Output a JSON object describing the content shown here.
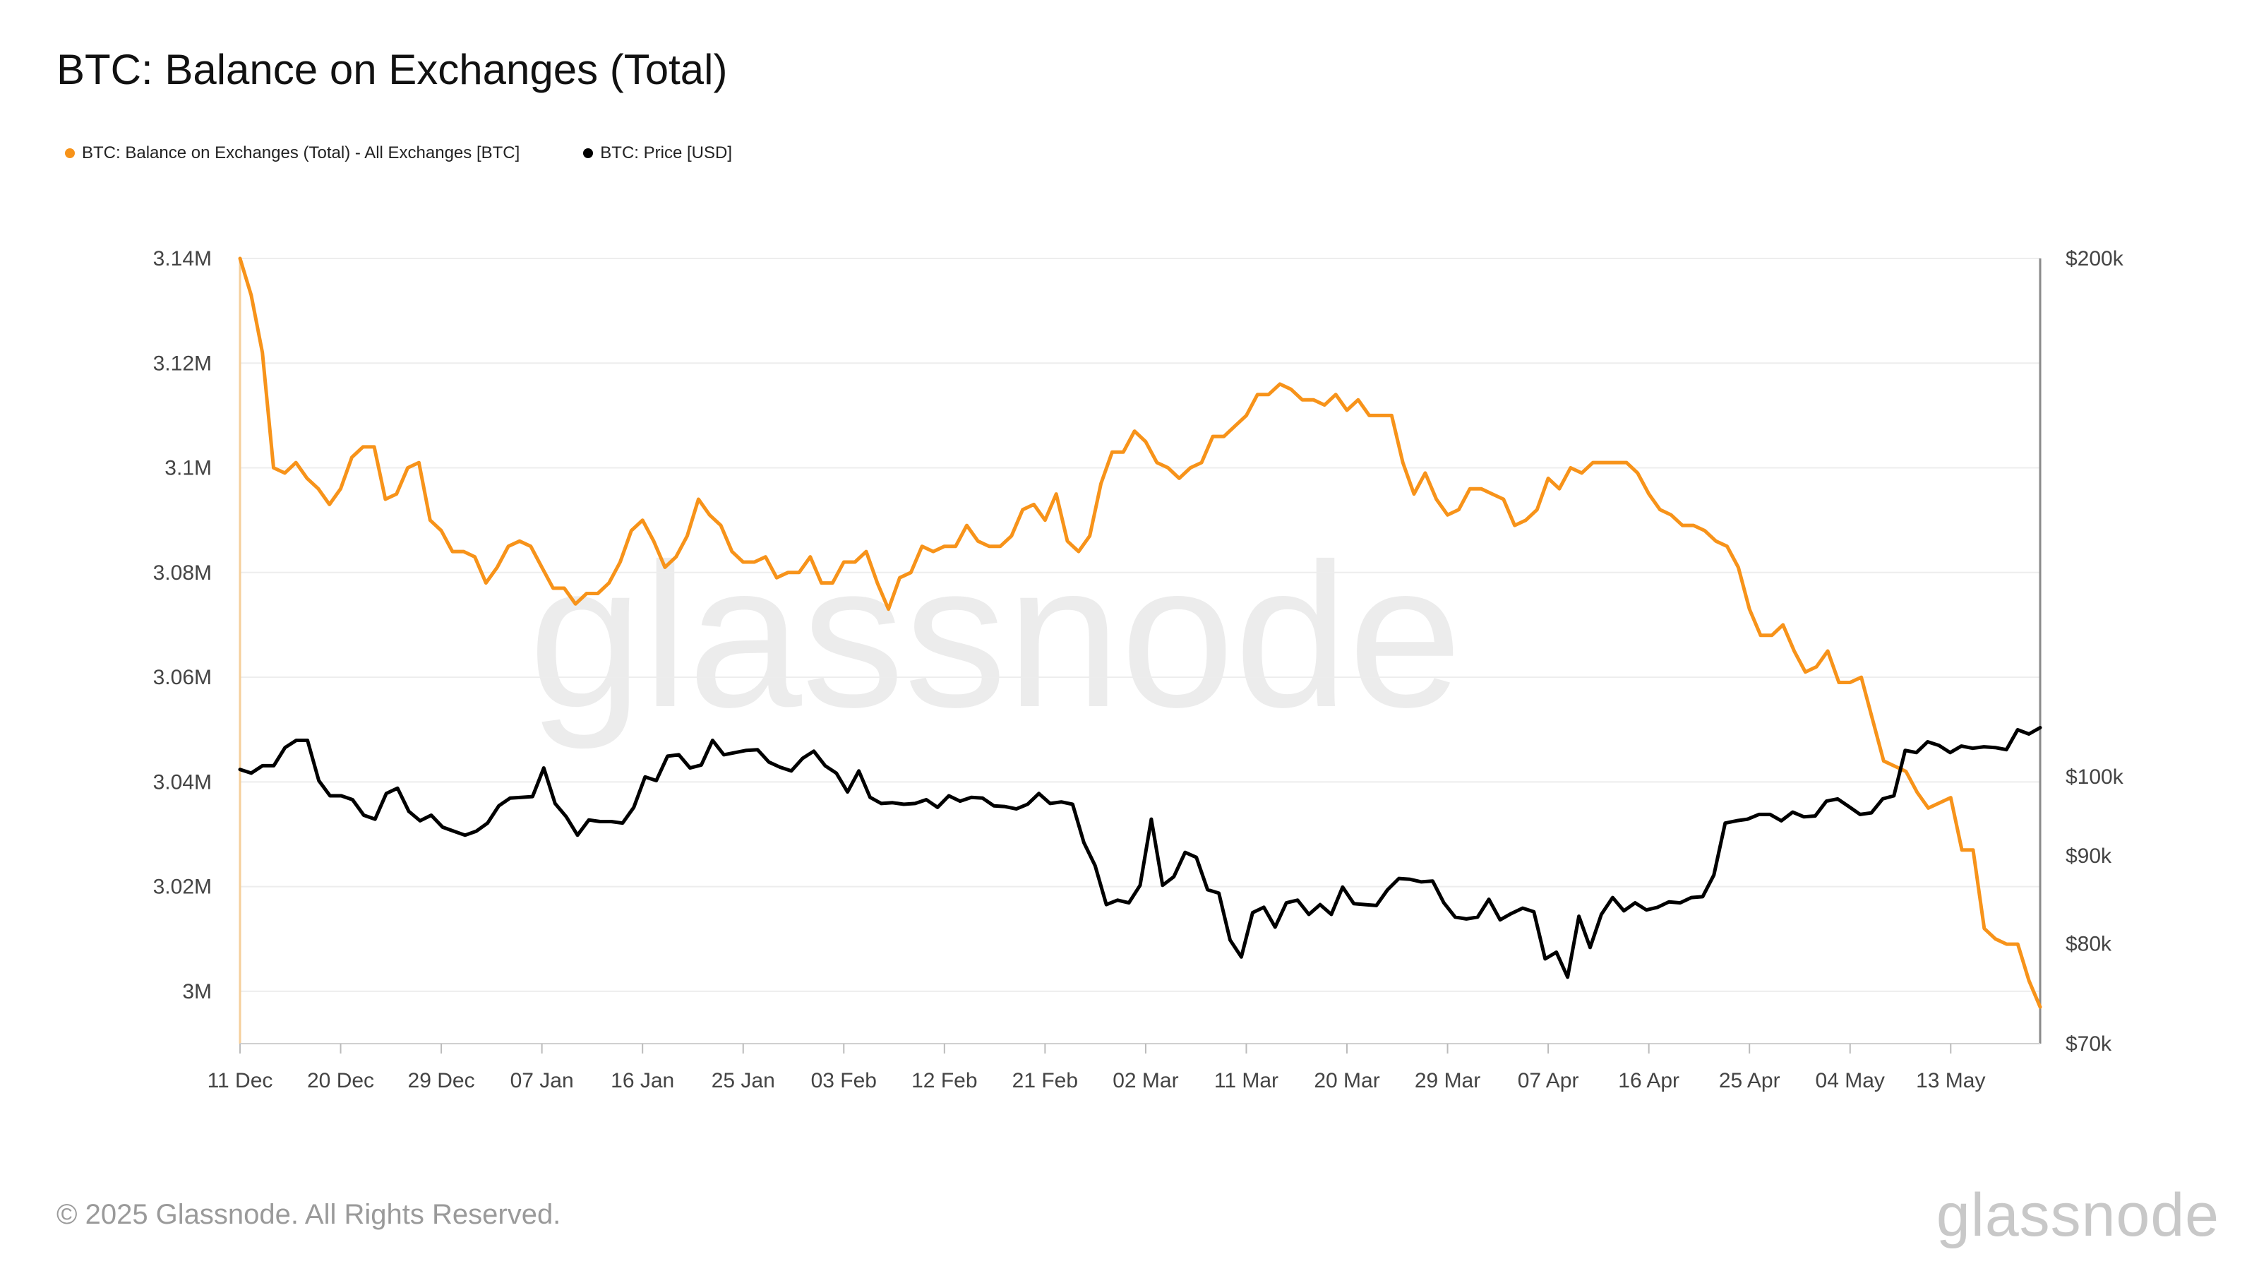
{
  "title": "BTC: Balance on Exchanges (Total)",
  "footer": {
    "copyright": "© 2025 Glassnode. All Rights Reserved.",
    "logo": "glassnode",
    "watermark": "glassnode"
  },
  "chart_data": {
    "type": "line",
    "title": "BTC: Balance on Exchanges (Total)",
    "x_ticks": [
      "11 Dec",
      "20 Dec",
      "29 Dec",
      "07 Jan",
      "16 Jan",
      "25 Jan",
      "03 Feb",
      "12 Feb",
      "21 Feb",
      "02 Mar",
      "11 Mar",
      "20 Mar",
      "29 Mar",
      "07 Apr",
      "16 Apr",
      "25 Apr",
      "04 May",
      "13 May"
    ],
    "y_left": {
      "ticks": [
        3000000,
        3020000,
        3040000,
        3060000,
        3080000,
        3100000,
        3120000,
        3140000
      ],
      "tick_labels": [
        "3M",
        "3.02M",
        "3.04M",
        "3.06M",
        "3.08M",
        "3.1M",
        "3.12M",
        "3.14M"
      ],
      "range": [
        2990000,
        3140000
      ]
    },
    "y_right": {
      "scale": "log",
      "ticks": [
        70000,
        80000,
        90000,
        100000,
        200000
      ],
      "tick_labels": [
        "$70k",
        "$80k",
        "$90k",
        "$100k",
        "$200k"
      ],
      "range": [
        70000,
        200000
      ]
    },
    "grid": true,
    "legend_position": "top-left",
    "series": [
      {
        "name": "BTC: Balance on Exchanges (Total) - All Exchanges [BTC]",
        "axis": "left",
        "color": "#f7931a",
        "values": [
          3140000,
          3133000,
          3122000,
          3100000,
          3099000,
          3101000,
          3098000,
          3096000,
          3093000,
          3096000,
          3102000,
          3104000,
          3104000,
          3094000,
          3095000,
          3100000,
          3101000,
          3090000,
          3088000,
          3084000,
          3084000,
          3083000,
          3078000,
          3081000,
          3085000,
          3086000,
          3085000,
          3081000,
          3077000,
          3077000,
          3074000,
          3076000,
          3076000,
          3078000,
          3082000,
          3088000,
          3090000,
          3086000,
          3081000,
          3083000,
          3087000,
          3094000,
          3091000,
          3089000,
          3084000,
          3082000,
          3082000,
          3083000,
          3079000,
          3080000,
          3080000,
          3083000,
          3078000,
          3078000,
          3082000,
          3082000,
          3084000,
          3078000,
          3073000,
          3079000,
          3080000,
          3085000,
          3084000,
          3085000,
          3085000,
          3089000,
          3086000,
          3085000,
          3085000,
          3087000,
          3092000,
          3093000,
          3090000,
          3095000,
          3086000,
          3084000,
          3087000,
          3097000,
          3103000,
          3103000,
          3107000,
          3105000,
          3101000,
          3100000,
          3098000,
          3100000,
          3101000,
          3106000,
          3106000,
          3108000,
          3110000,
          3114000,
          3114000,
          3116000,
          3115000,
          3113000,
          3113000,
          3112000,
          3114000,
          3111000,
          3113000,
          3110000,
          3110000,
          3110000,
          3101000,
          3095000,
          3099000,
          3094000,
          3091000,
          3092000,
          3096000,
          3096000,
          3095000,
          3094000,
          3089000,
          3090000,
          3092000,
          3098000,
          3096000,
          3100000,
          3099000,
          3101000,
          3101000,
          3101000,
          3101000,
          3099000,
          3095000,
          3092000,
          3091000,
          3089000,
          3089000,
          3088000,
          3086000,
          3085000,
          3081000,
          3073000,
          3068000,
          3068000,
          3070000,
          3065000,
          3061000,
          3062000,
          3065000,
          3059000,
          3059000,
          3060000,
          3052000,
          3044000,
          3043000,
          3042000,
          3038000,
          3035000,
          3036000,
          3037000,
          3027000,
          3027000,
          3012000,
          3010000,
          3009000,
          3009000,
          3002000,
          2997000
        ]
      },
      {
        "name": "BTC: Price [USD]",
        "axis": "right",
        "color": "#000000",
        "values": [
          101000,
          100500,
          101500,
          101500,
          104000,
          105000,
          105000,
          99500,
          97500,
          97500,
          97000,
          95000,
          94500,
          97800,
          98500,
          95500,
          94300,
          95000,
          93500,
          93000,
          92500,
          93000,
          94000,
          96200,
          97200,
          97300,
          97400,
          101200,
          96500,
          94800,
          92500,
          94400,
          94200,
          94200,
          94000,
          96000,
          100000,
          99500,
          102800,
          103000,
          101200,
          101600,
          105000,
          103000,
          103300,
          103600,
          103700,
          102000,
          101300,
          100800,
          102500,
          103500,
          101500,
          100500,
          98000,
          100800,
          97300,
          96500,
          96600,
          96400,
          96500,
          97000,
          96000,
          97500,
          96800,
          97300,
          97200,
          96200,
          96100,
          95800,
          96400,
          97800,
          96500,
          96700,
          96400,
          91600,
          88800,
          84300,
          84800,
          84500,
          86500,
          94500,
          86500,
          87500,
          90400,
          89800,
          86000,
          85600,
          80400,
          78600,
          83400,
          84000,
          81800,
          84500,
          84800,
          83200,
          84300,
          83200,
          86300,
          84400,
          84300,
          84200,
          86000,
          87300,
          87200,
          86900,
          87000,
          84500,
          82900,
          82700,
          82900,
          84900,
          82600,
          83300,
          83900,
          83500,
          78400,
          79100,
          76500,
          83000,
          79600,
          83200,
          85100,
          83600,
          84500,
          83700,
          84000,
          84600,
          84500,
          85100,
          85200,
          87700,
          94000,
          94300,
          94500,
          95100,
          95100,
          94300,
          95400,
          94800,
          94900,
          96800,
          97100,
          96100,
          95100,
          95300,
          97100,
          97500,
          103600,
          103300,
          104800,
          104300,
          103300,
          104200,
          103900,
          104100,
          104000,
          103700,
          106500,
          105900,
          106800
        ]
      }
    ]
  }
}
